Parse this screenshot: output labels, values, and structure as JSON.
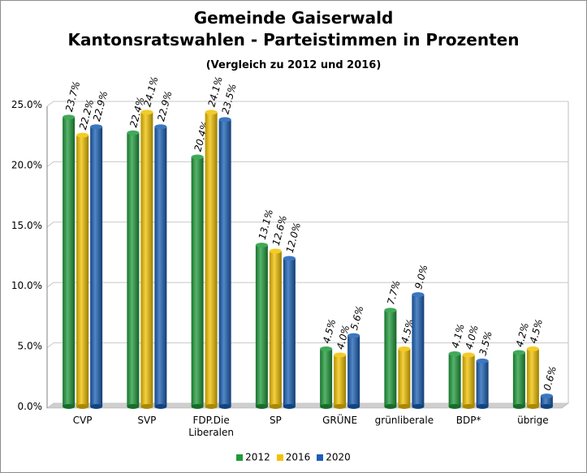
{
  "title": "Gemeinde Gaiserwald",
  "subtitle_main": "Kantonsratswahlen - Parteistimmen in Prozenten",
  "subtitle_note": "(Vergleich zu 2012 und 2016)",
  "colors": {
    "2012": "#1f9a3a",
    "2016": "#f2c200",
    "2020": "#1a5fb4"
  },
  "chart_data": {
    "type": "bar",
    "categories": [
      "CVP",
      "SVP",
      "FDP.Die Liberalen",
      "SP",
      "GRÜNE",
      "grünliberale",
      "BDP*",
      "übrige"
    ],
    "category_lines": [
      [
        "CVP"
      ],
      [
        "SVP"
      ],
      [
        "FDP.Die",
        "Liberalen"
      ],
      [
        "SP"
      ],
      [
        "GRÜNE"
      ],
      [
        "grünliberale"
      ],
      [
        "BDP*"
      ],
      [
        "übrige"
      ]
    ],
    "series": [
      {
        "name": "2012",
        "values": [
          23.7,
          22.4,
          20.4,
          13.1,
          4.5,
          7.7,
          4.1,
          4.2
        ],
        "labels": [
          "23.7%",
          "22.4%",
          "20.4%",
          "13.1%",
          "4.5%",
          "7.7%",
          "4.1%",
          "4.2%"
        ]
      },
      {
        "name": "2016",
        "values": [
          22.2,
          24.1,
          24.1,
          12.6,
          4.0,
          4.5,
          4.0,
          4.5
        ],
        "labels": [
          "22.2%",
          "24.1%",
          "24.1%",
          "12.6%",
          "4.0%",
          "4.5%",
          "4.0%",
          "4.5%"
        ]
      },
      {
        "name": "2020",
        "values": [
          22.9,
          22.9,
          23.5,
          12.0,
          5.6,
          9.0,
          3.5,
          0.6
        ],
        "labels": [
          "22.9%",
          "22.9%",
          "23.5%",
          "12.0%",
          "5.6%",
          "9.0%",
          "3.5%",
          "0.6%"
        ]
      }
    ],
    "yticks": [
      "0.0%",
      "5.0%",
      "10.0%",
      "15.0%",
      "20.0%",
      "25.0%"
    ],
    "ylim": [
      0,
      25
    ],
    "grid": true,
    "legend": "bottom"
  }
}
